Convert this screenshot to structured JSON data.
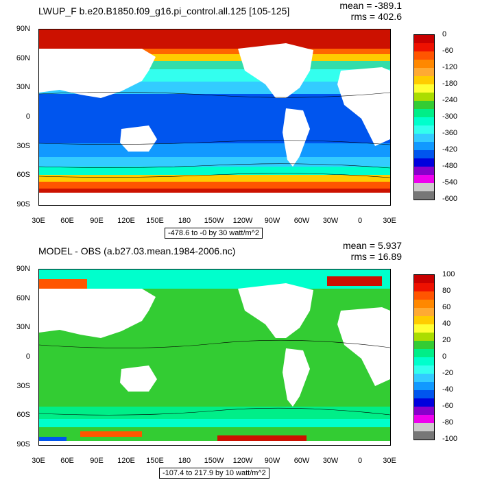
{
  "lat_ticks": [
    "90N",
    "60N",
    "30N",
    "0",
    "30S",
    "60S",
    "90S"
  ],
  "lon_ticks": [
    "30E",
    "60E",
    "90E",
    "120E",
    "150E",
    "180",
    "150W",
    "120W",
    "90W",
    "60W",
    "30W",
    "0",
    "30E"
  ],
  "panels": [
    {
      "title": "LWUP_F b.e20.B1850.f09_g16.pi_control.all.125 [105-125]",
      "mean": "mean = -389.1",
      "rms": "rms = 402.6",
      "range": "-478.6 to -0 by 30 watt/m^2",
      "colorbar_labels": [
        "0",
        "-60",
        "-120",
        "-180",
        "-240",
        "-300",
        "-360",
        "-420",
        "-480",
        "-540",
        "-600"
      ],
      "colorbar_colors": [
        "#c80000",
        "#ee1100",
        "#ff5500",
        "#ff8800",
        "#ffaa33",
        "#ffcc00",
        "#ffff33",
        "#aadd00",
        "#33cc33",
        "#00ee88",
        "#00ffcc",
        "#33ffee",
        "#33ccff",
        "#1199ff",
        "#0055ee",
        "#0000dd",
        "#8800cc",
        "#ee00ee",
        "#cccccc",
        "#777777"
      ]
    },
    {
      "title": "MODEL - OBS (a.b27.03.mean.1984-2006.nc)",
      "mean": "mean = 5.937",
      "rms": "rms = 16.89",
      "range": "-107.4 to 217.9 by 10 watt/m^2",
      "colorbar_labels": [
        "100",
        "80",
        "60",
        "40",
        "20",
        "0",
        "-20",
        "-40",
        "-60",
        "-80",
        "-100"
      ],
      "colorbar_colors": [
        "#c80000",
        "#ee1100",
        "#ff5500",
        "#ff8800",
        "#ffaa33",
        "#ffcc00",
        "#ffff33",
        "#aadd00",
        "#33cc33",
        "#00ee88",
        "#00ffcc",
        "#33ffee",
        "#33ccff",
        "#1199ff",
        "#0055ee",
        "#0000dd",
        "#8800cc",
        "#ee00ee",
        "#cccccc",
        "#777777"
      ]
    }
  ]
}
